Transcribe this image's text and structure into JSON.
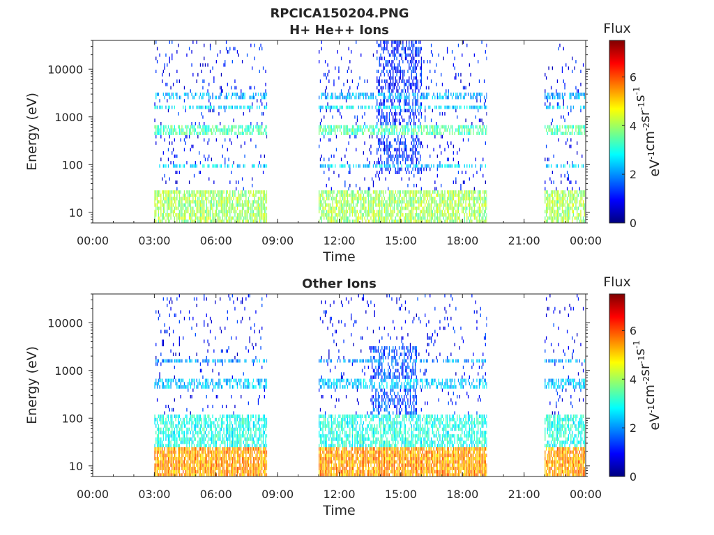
{
  "figure": {
    "main_title": "RPCICA150204.PNG"
  },
  "chart_data": [
    {
      "type": "heatmap",
      "title": "H+ He++ Ions",
      "xlabel": "Time",
      "ylabel": "Energy (eV)",
      "x_ticks": [
        "00:00",
        "03:00",
        "06:00",
        "09:00",
        "12:00",
        "15:00",
        "18:00",
        "21:00",
        "00:00"
      ],
      "xlim_hours": [
        0,
        24
      ],
      "y_ticks": [
        "10",
        "100",
        "1000",
        "10000"
      ],
      "y_tick_values": [
        10,
        100,
        1000,
        10000
      ],
      "ylim": [
        6,
        40000
      ],
      "y_scale": "log",
      "colorbar": {
        "title": "Flux",
        "unit_parts": [
          "eV",
          "-1",
          "cm",
          "-2",
          "sr",
          "-1",
          "s",
          "-1"
        ],
        "ticks": [
          "0",
          "2",
          "4",
          "6"
        ],
        "tick_values": [
          0,
          2,
          4,
          6
        ],
        "range": [
          0,
          7.5
        ],
        "colormap": "jet"
      },
      "data_intervals_hours": [
        [
          3.0,
          8.5
        ],
        [
          11.0,
          19.2
        ],
        [
          22.0,
          24.0
        ]
      ],
      "features": [
        {
          "label": "low-energy band",
          "energy_range": [
            6,
            28
          ],
          "level": 4.0
        },
        {
          "label": "band ~100 eV",
          "energy_range": [
            90,
            110
          ],
          "level": 2.5
        },
        {
          "label": "band ~500 eV",
          "energy_range": [
            450,
            700
          ],
          "level": 3.4
        },
        {
          "label": "band ~1600 eV",
          "energy_range": [
            1400,
            1800
          ],
          "level": 2.6
        },
        {
          "label": "band ~2800 eV",
          "energy_range": [
            2500,
            3200
          ],
          "level": 2.2
        },
        {
          "label": "burst 13-16h",
          "time_range_hours": [
            13.8,
            16.0
          ],
          "energy_range": [
            60,
            40000
          ],
          "level": 1.2
        }
      ]
    },
    {
      "type": "heatmap",
      "title": "Other Ions",
      "xlabel": "Time",
      "ylabel": "Energy (eV)",
      "x_ticks": [
        "00:00",
        "03:00",
        "06:00",
        "09:00",
        "12:00",
        "15:00",
        "18:00",
        "21:00",
        "00:00"
      ],
      "xlim_hours": [
        0,
        24
      ],
      "y_ticks": [
        "10",
        "100",
        "1000",
        "10000"
      ],
      "y_tick_values": [
        10,
        100,
        1000,
        10000
      ],
      "ylim": [
        6,
        40000
      ],
      "y_scale": "log",
      "colorbar": {
        "title": "Flux",
        "unit_parts": [
          "eV",
          "-1",
          "cm",
          "-2",
          "sr",
          "-1",
          "s",
          "-1"
        ],
        "ticks": [
          "0",
          "2",
          "4",
          "6"
        ],
        "tick_values": [
          0,
          2,
          4,
          6
        ],
        "range": [
          0,
          7.5
        ],
        "colormap": "jet"
      },
      "data_intervals_hours": [
        [
          3.0,
          8.5
        ],
        [
          11.0,
          19.2
        ],
        [
          22.0,
          24.0
        ]
      ],
      "features": [
        {
          "label": "low-energy band",
          "energy_range": [
            6,
            25
          ],
          "level": 5.4
        },
        {
          "label": "mid-energy haze",
          "energy_range": [
            25,
            120
          ],
          "level": 3.0
        },
        {
          "label": "band ~500 eV",
          "energy_range": [
            450,
            650
          ],
          "level": 2.4
        },
        {
          "label": "band ~1600 eV",
          "energy_range": [
            1400,
            1800
          ],
          "level": 2.1
        },
        {
          "label": "burst 13-16h",
          "time_range_hours": [
            13.5,
            15.8
          ],
          "energy_range": [
            60,
            3000
          ],
          "level": 1.5
        }
      ]
    }
  ]
}
